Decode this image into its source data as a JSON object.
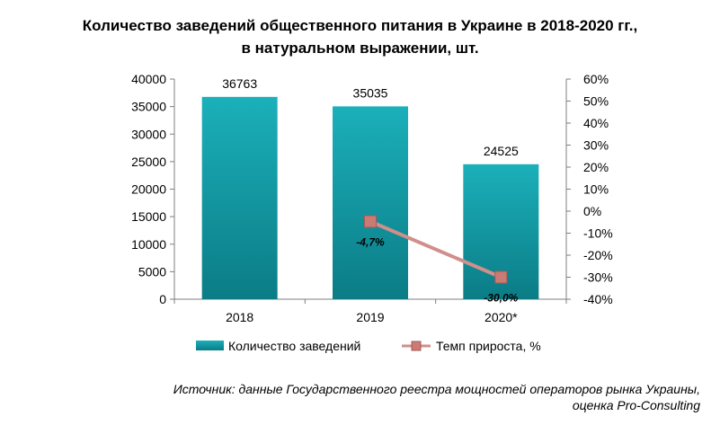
{
  "chart_data": {
    "type": "bar",
    "title": [
      "Количество заведений общественного питания в Украине в 2018-2020 гг.,",
      "в натуральном выражении, шт."
    ],
    "categories": [
      "2018",
      "2019",
      "2020*"
    ],
    "series": [
      {
        "name": "Количество заведений",
        "type": "bar",
        "axis": "left",
        "values": [
          36763,
          35035,
          24525
        ],
        "data_labels": [
          "36763",
          "35035",
          "24525"
        ],
        "color": "#1aa3ad"
      },
      {
        "name": "Темп прироста, %",
        "type": "line",
        "axis": "right",
        "values": [
          null,
          -4.7,
          -30.0
        ],
        "data_labels": [
          null,
          "-4,7%",
          "-30,0%"
        ],
        "color": "#d08f8a",
        "marker_color": "#c97b74"
      }
    ],
    "y_left": {
      "ylim": [
        0,
        40000
      ],
      "ticks": [
        0,
        5000,
        10000,
        15000,
        20000,
        25000,
        30000,
        35000,
        40000
      ],
      "tick_labels": [
        "0",
        "5000",
        "10000",
        "15000",
        "20000",
        "25000",
        "30000",
        "35000",
        "40000"
      ]
    },
    "y_right": {
      "ylim": [
        -40,
        60
      ],
      "ticks": [
        -40,
        -30,
        -20,
        -10,
        0,
        10,
        20,
        30,
        40,
        50,
        60
      ],
      "tick_labels": [
        "-40%",
        "-30%",
        "-20%",
        "-10%",
        "0%",
        "10%",
        "20%",
        "30%",
        "40%",
        "50%",
        "60%"
      ]
    },
    "grid": false,
    "legend_position": "bottom"
  },
  "source": [
    "Источник: данные Государственного реестра мощностей операторов рынка Украины,",
    "оценка Pro-Consulting"
  ]
}
